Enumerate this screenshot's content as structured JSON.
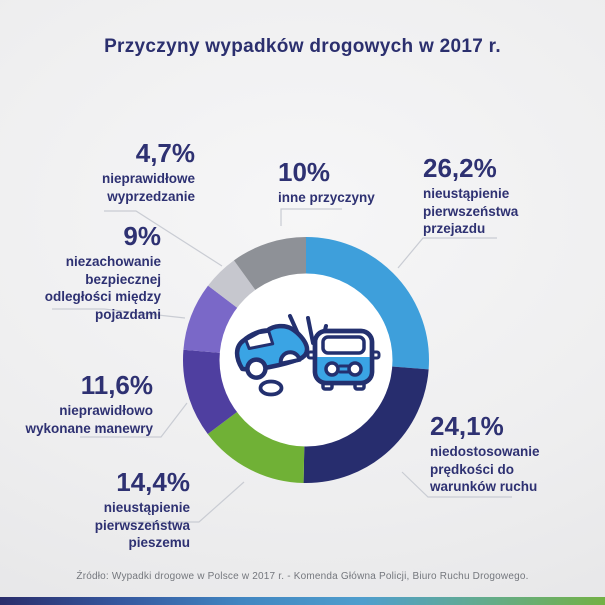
{
  "title": "Przyczyny wypadków drogowych w 2017 r.",
  "chart_data": {
    "type": "pie",
    "subtype": "donut",
    "title": "Przyczyny wypadków drogowych w 2017 r.",
    "legend_position": "callout-labels-around-donut",
    "order": "clockwise-from-12-o'clock",
    "center_icon": "car-crash-icon",
    "segments": [
      {
        "value": 26.2,
        "value_label": "26,2%",
        "label": "nieustąpienie pierwszeństwa przejazdu",
        "label_multiline": "nieustąpienie\npierwszeństwa\nprzejazdu",
        "color": "#3e9fdb"
      },
      {
        "value": 24.1,
        "value_label": "24,1%",
        "label": "niedostosowanie prędkości do warunków ruchu",
        "label_multiline": "niedostosowanie\nprędkości do\nwarunków ruchu",
        "color": "#272d6e"
      },
      {
        "value": 14.4,
        "value_label": "14,4%",
        "label": "nieustąpienie pierwszeństwa pieszemu",
        "label_multiline": "nieustąpienie\npierwszeństwa pieszemu",
        "color": "#70b136"
      },
      {
        "value": 11.6,
        "value_label": "11,6%",
        "label": "nieprawidłowo wykonane manewry",
        "label_multiline": "nieprawidłowo\nwykonane manewry",
        "color": "#4f3fa0"
      },
      {
        "value": 9,
        "value_label": "9%",
        "label": "niezachowanie bezpiecznej odległości między pojazdami",
        "label_multiline": "niezachowanie\nbezpiecznej\nodległości między\npojazdami",
        "color": "#7a68c8"
      },
      {
        "value": 4.7,
        "value_label": "4,7%",
        "label": "nieprawidłowe wyprzedzanie",
        "label_multiline": "nieprawidłowe\nwyprzedzanie",
        "color": "#c6c7ce"
      },
      {
        "value": 10,
        "value_label": "10%",
        "label": "inne przyczyny",
        "label_multiline": "inne przyczyny",
        "color": "#8e9197"
      }
    ]
  },
  "footer": {
    "source": "Źródło: Wypadki drogowe w Polsce w 2017 r. - Komenda Główna Policji, Biuro Ruchu Drogowego.",
    "bar_gradient": [
      "#2a2d6b",
      "#35589f",
      "#4186c1",
      "#4f9ecd",
      "#63ab8d",
      "#73b145"
    ]
  },
  "colors": {
    "background": "#ededee",
    "heading_text": "#2b2f6e",
    "callout_text": "#2e3172",
    "leader_line": "#c9ccd3",
    "source_text": "#74777d",
    "icon_outline_navy": "#23306f",
    "icon_fill_blue": "#3aa4e4"
  }
}
